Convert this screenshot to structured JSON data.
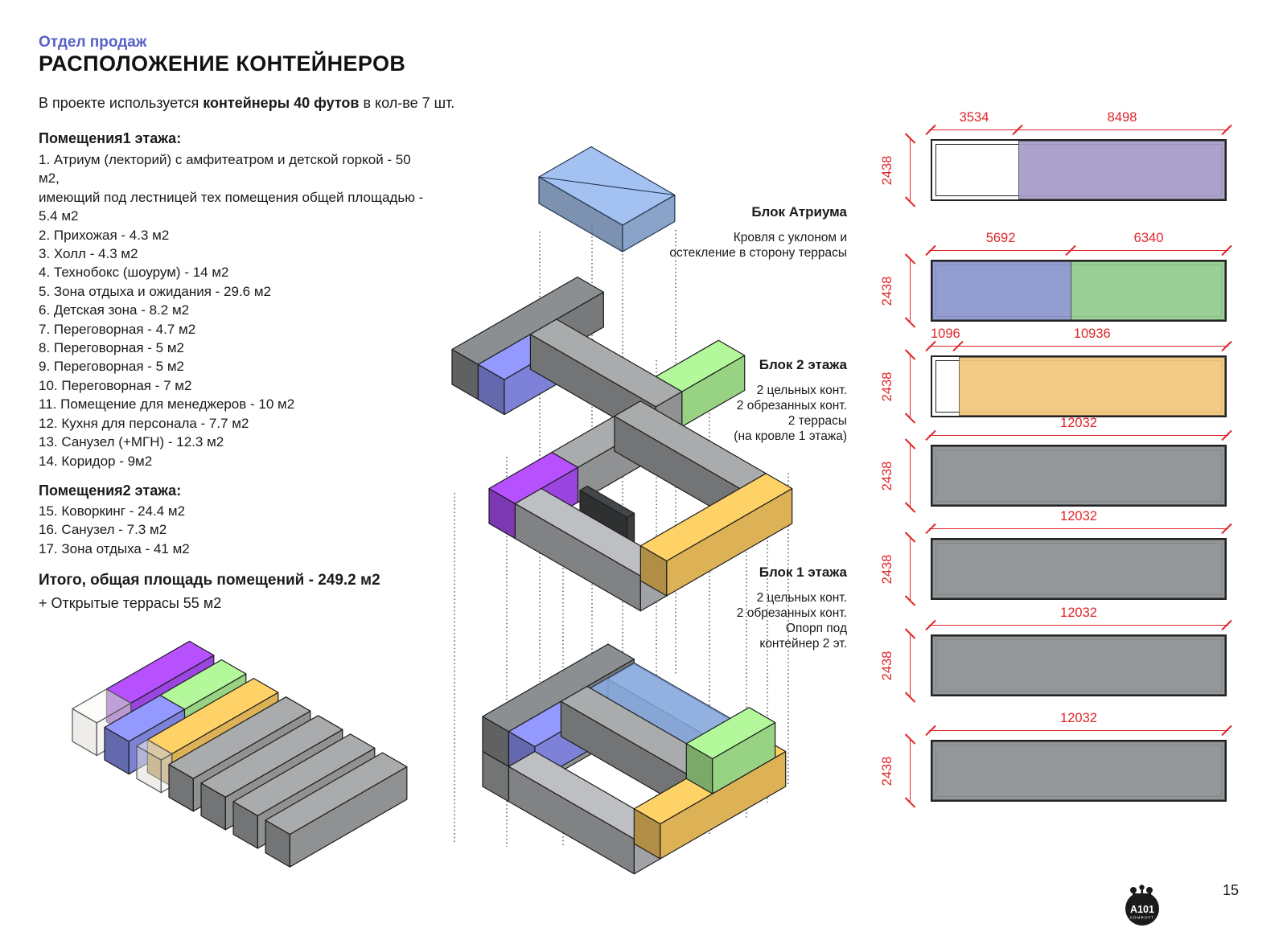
{
  "page": {
    "eyebrow": "Отдел продаж",
    "title": "РАСПОЛОЖЕНИЕ КОНТЕЙНЕРОВ",
    "intro_prefix": "В проекте используется ",
    "intro_bold": "контейнеры 40 футов",
    "intro_suffix": " в кол-ве 7 шт.",
    "page_number": "15"
  },
  "floor1": {
    "heading": "Помещения1 этажа:",
    "items": [
      "1. Атриум (лекторий) с амфитеатром и детской горкой - 50",
      "м2,",
      "имеющий под лестницей тех помещения общей площадью -",
      "5.4 м2",
      "2. Прихожая - 4.3 м2",
      "3. Холл - 4.3 м2",
      "4. Технобокс (шоурум) - 14 м2",
      "5. Зона отдыха и ожидания - 29.6 м2",
      "6. Детская зона - 8.2 м2",
      "7. Переговорная - 4.7 м2",
      "8. Переговорная - 5 м2",
      "9. Переговорная - 5 м2",
      "10. Переговорная - 7 м2",
      "11. Помещение для менеджеров - 10 м2",
      "12. Кухня для персонала - 7.7 м2",
      "13. Санузел (+МГН) - 12.3 м2",
      "14. Коридор - 9м2"
    ]
  },
  "floor2": {
    "heading": "Помещения2 этажа:",
    "items": [
      "15. Коворкинг - 24.4 м2",
      "16. Санузел - 7.3 м2",
      "17. Зона отдыха - 41 м2"
    ]
  },
  "totals": {
    "total": "Итого, общая площадь помещений - 249.2 м2",
    "terraces": "+ Открытые террасы 55 м2"
  },
  "blocks": [
    {
      "title": "Блок Атриума",
      "lines": [
        "Кровля с уклоном и",
        "остекление в сторону террасы"
      ]
    },
    {
      "title": "Блок 2 этажа",
      "lines": [
        "2 цельных конт.",
        "2 обрезанных конт.",
        "2 террасы",
        "(на кровле 1 этажа)"
      ]
    },
    {
      "title": "Блок 1 этажа",
      "lines": [
        "2 цельных конт.",
        "2 обрезанных конт.",
        "Опорп под",
        "контейнер 2 эт."
      ]
    }
  ],
  "containers": [
    {
      "height": "2438",
      "segments": [
        {
          "label": "3534",
          "color_key": "plan_white"
        },
        {
          "label": "8498",
          "color_key": "plan_purple"
        }
      ]
    },
    {
      "height": "2438",
      "segments": [
        {
          "label": "5692",
          "color_key": "plan_blue"
        },
        {
          "label": "6340",
          "color_key": "plan_green"
        }
      ]
    },
    {
      "height": "2438",
      "segments": [
        {
          "label": "1096",
          "color_key": "plan_white"
        },
        {
          "label": "10936",
          "color_key": "plan_orange"
        }
      ]
    },
    {
      "height": "2438",
      "segments": [
        {
          "label": "12032",
          "color_key": "plan_gray"
        }
      ]
    },
    {
      "height": "2438",
      "segments": [
        {
          "label": "12032",
          "color_key": "plan_gray"
        }
      ]
    },
    {
      "height": "2438",
      "segments": [
        {
          "label": "12032",
          "color_key": "plan_gray"
        }
      ]
    },
    {
      "height": "2438",
      "segments": [
        {
          "label": "12032",
          "color_key": "plan_gray"
        }
      ]
    }
  ],
  "logo": {
    "line1": "A101",
    "line2": "КОМФОРТ"
  },
  "colors": {
    "accent_blue_text": "#5661c6",
    "dimension_red": "#e02427",
    "plan_white": "#ffffff",
    "plan_purple": "#a79bc8",
    "plan_blue": "#8c95cc",
    "plan_green": "#92cb8d",
    "plan_orange": "#f1c679",
    "plan_gray": "#8c8f91",
    "iso_gray": "#8f9193",
    "iso_gray_dark": "#77797b",
    "iso_gray_light": "#a0a2a5",
    "iso_purple": "#9b45e0",
    "iso_blue": "#7d82d8",
    "iso_green": "#98d384",
    "iso_gold": "#ddb257",
    "iso_black": "#3a3c3e",
    "iso_glass": "#6d8cba",
    "iso_white": "#ffffff"
  }
}
